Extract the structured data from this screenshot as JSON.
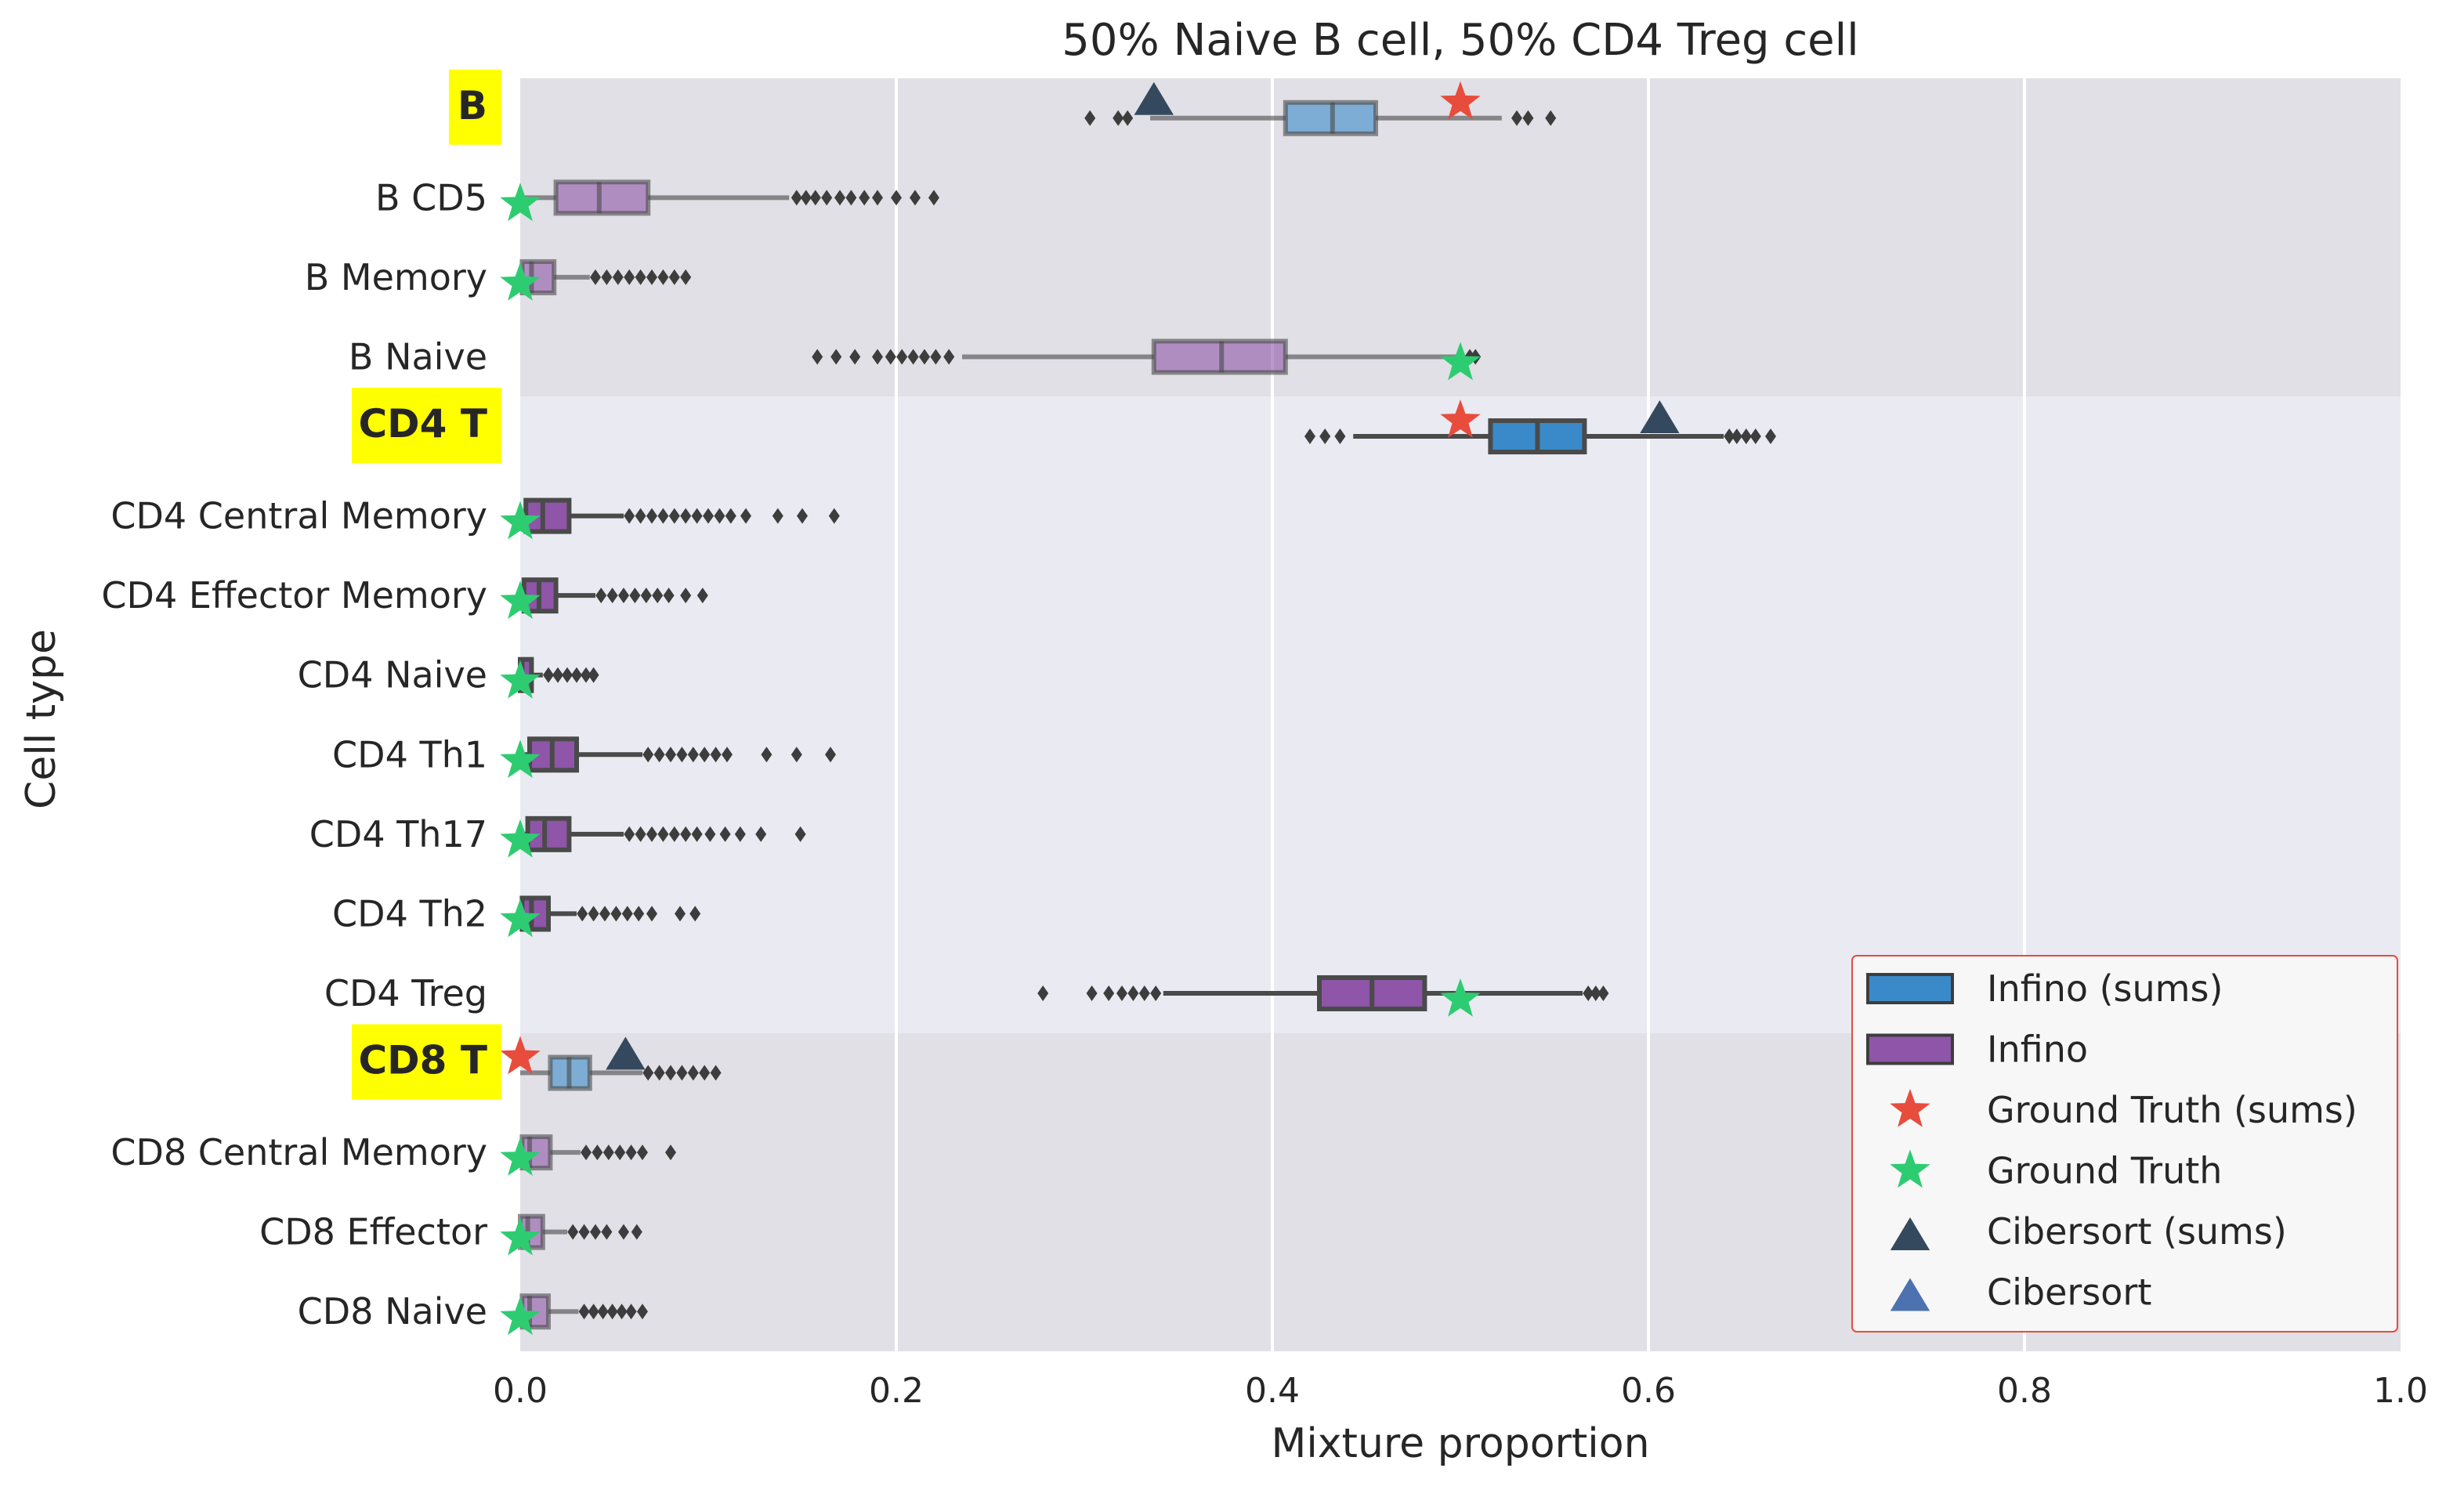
{
  "chart_data": {
    "type": "boxplot",
    "title": "50% Naive B cell, 50% CD4 Treg cell",
    "xlabel": "Mixture proportion",
    "ylabel": "Cell type",
    "xlim": [
      0.0,
      1.0
    ],
    "xticks": [
      "0.0",
      "0.2",
      "0.4",
      "0.6",
      "0.8",
      "1.0"
    ],
    "grid": true,
    "legend_position": "lower-right",
    "colors": {
      "infino_sums": "#3a8ac9",
      "infino": "#8e55a8",
      "ground_truth_sums": "#e74c3c",
      "ground_truth": "#2ecc71",
      "cibersort_sums": "#34495e",
      "cibersort": "#4c72b0",
      "group_label_bg": "#ffff00",
      "group_label_text": "#ff0000"
    },
    "legend": [
      {
        "label": "Infino (sums)",
        "marker": "box",
        "color_key": "infino_sums"
      },
      {
        "label": "Infino",
        "marker": "box",
        "color_key": "infino"
      },
      {
        "label": "Ground Truth (sums)",
        "marker": "star",
        "color_key": "ground_truth_sums"
      },
      {
        "label": "Ground Truth",
        "marker": "star",
        "color_key": "ground_truth"
      },
      {
        "label": "Cibersort (sums)",
        "marker": "triangle",
        "color_key": "cibersort_sums"
      },
      {
        "label": "Cibersort",
        "marker": "triangle",
        "color_key": "cibersort"
      }
    ],
    "groups": [
      {
        "name": "B",
        "shaded": true
      },
      {
        "name": "CD4 T",
        "shaded": false
      },
      {
        "name": "CD8 T",
        "shaded": true
      }
    ],
    "rows": [
      {
        "label": "B",
        "group": 0,
        "is_group": true,
        "series": "infino_sums",
        "box": {
          "whislo": 0.335,
          "q1": 0.407,
          "med": 0.432,
          "q3": 0.455,
          "whishi": 0.522
        },
        "fliers": [
          0.303,
          0.318,
          0.323,
          0.53,
          0.536,
          0.548
        ],
        "ground_truth": 0.5,
        "cibersort": 0.337
      },
      {
        "label": "B CD5",
        "group": 0,
        "is_group": false,
        "series": "infino",
        "box": {
          "whislo": 0.0,
          "q1": 0.019,
          "med": 0.042,
          "q3": 0.068,
          "whishi": 0.143
        },
        "fliers": [
          0.147,
          0.152,
          0.157,
          0.163,
          0.17,
          0.176,
          0.183,
          0.19,
          0.2,
          0.21,
          0.22
        ],
        "ground_truth": 0.0
      },
      {
        "label": "B Memory",
        "group": 0,
        "is_group": false,
        "series": "infino",
        "box": {
          "whislo": 0.0,
          "q1": 0.001,
          "med": 0.006,
          "q3": 0.018,
          "whishi": 0.037
        },
        "fliers": [
          0.04,
          0.046,
          0.052,
          0.058,
          0.064,
          0.07,
          0.076,
          0.082,
          0.088
        ],
        "ground_truth": 0.0
      },
      {
        "label": "B Naive",
        "group": 0,
        "is_group": false,
        "series": "infino",
        "box": {
          "whislo": 0.235,
          "q1": 0.337,
          "med": 0.373,
          "q3": 0.407,
          "whishi": 0.502
        },
        "fliers": [
          0.158,
          0.168,
          0.178,
          0.19,
          0.197,
          0.203,
          0.209,
          0.215,
          0.221,
          0.228,
          0.505,
          0.508
        ],
        "ground_truth": 0.5
      },
      {
        "label": "CD4 T",
        "group": 1,
        "is_group": true,
        "series": "infino_sums",
        "box": {
          "whislo": 0.443,
          "q1": 0.516,
          "med": 0.541,
          "q3": 0.566,
          "whishi": 0.64
        },
        "fliers": [
          0.42,
          0.428,
          0.436,
          0.643,
          0.647,
          0.652,
          0.657,
          0.665
        ],
        "ground_truth": 0.5,
        "cibersort": 0.606
      },
      {
        "label": "CD4 Central Memory",
        "group": 1,
        "is_group": false,
        "series": "infino",
        "box": {
          "whislo": 0.0,
          "q1": 0.003,
          "med": 0.012,
          "q3": 0.026,
          "whishi": 0.055
        },
        "fliers": [
          0.058,
          0.064,
          0.07,
          0.076,
          0.082,
          0.088,
          0.094,
          0.1,
          0.106,
          0.112,
          0.12,
          0.137,
          0.15,
          0.167
        ],
        "ground_truth": 0.0
      },
      {
        "label": "CD4 Effector Memory",
        "group": 1,
        "is_group": false,
        "series": "infino",
        "box": {
          "whislo": 0.0,
          "q1": 0.002,
          "med": 0.01,
          "q3": 0.019,
          "whishi": 0.04
        },
        "fliers": [
          0.043,
          0.049,
          0.055,
          0.061,
          0.067,
          0.073,
          0.079,
          0.088,
          0.097
        ],
        "ground_truth": 0.0
      },
      {
        "label": "CD4 Naive",
        "group": 1,
        "is_group": false,
        "series": "infino",
        "box": {
          "whislo": 0.0,
          "q1": 0.0,
          "med": 0.001,
          "q3": 0.006,
          "whishi": 0.012
        },
        "fliers": [
          0.015,
          0.02,
          0.025,
          0.03,
          0.035,
          0.039
        ],
        "ground_truth": 0.0
      },
      {
        "label": "CD4 Th1",
        "group": 1,
        "is_group": false,
        "series": "infino",
        "box": {
          "whislo": 0.0,
          "q1": 0.005,
          "med": 0.017,
          "q3": 0.03,
          "whishi": 0.065
        },
        "fliers": [
          0.068,
          0.074,
          0.08,
          0.086,
          0.092,
          0.098,
          0.104,
          0.11,
          0.131,
          0.147,
          0.165
        ],
        "ground_truth": 0.0
      },
      {
        "label": "CD4 Th17",
        "group": 1,
        "is_group": false,
        "series": "infino",
        "box": {
          "whislo": 0.0,
          "q1": 0.004,
          "med": 0.013,
          "q3": 0.026,
          "whishi": 0.055
        },
        "fliers": [
          0.058,
          0.064,
          0.07,
          0.076,
          0.082,
          0.088,
          0.094,
          0.101,
          0.109,
          0.117,
          0.128,
          0.149
        ],
        "ground_truth": 0.0
      },
      {
        "label": "CD4 Th2",
        "group": 1,
        "is_group": false,
        "series": "infino",
        "box": {
          "whislo": 0.0,
          "q1": 0.001,
          "med": 0.006,
          "q3": 0.015,
          "whishi": 0.03
        },
        "fliers": [
          0.033,
          0.039,
          0.045,
          0.051,
          0.057,
          0.063,
          0.07,
          0.085,
          0.093
        ],
        "ground_truth": 0.0
      },
      {
        "label": "CD4 Treg",
        "group": 1,
        "is_group": false,
        "series": "infino",
        "box": {
          "whislo": 0.342,
          "q1": 0.425,
          "med": 0.453,
          "q3": 0.481,
          "whishi": 0.565
        },
        "fliers": [
          0.278,
          0.304,
          0.313,
          0.32,
          0.326,
          0.332,
          0.338,
          0.568,
          0.572,
          0.576
        ],
        "ground_truth": 0.5
      },
      {
        "label": "CD8 T",
        "group": 2,
        "is_group": true,
        "series": "infino_sums",
        "box": {
          "whislo": 0.0,
          "q1": 0.016,
          "med": 0.026,
          "q3": 0.037,
          "whishi": 0.065
        },
        "fliers": [
          0.068,
          0.074,
          0.08,
          0.086,
          0.092,
          0.098,
          0.104
        ],
        "ground_truth": 0.0,
        "cibersort": 0.056
      },
      {
        "label": "CD8 Central Memory",
        "group": 2,
        "is_group": false,
        "series": "infino",
        "box": {
          "whislo": 0.0,
          "q1": 0.001,
          "med": 0.005,
          "q3": 0.016,
          "whishi": 0.032
        },
        "fliers": [
          0.035,
          0.041,
          0.047,
          0.053,
          0.059,
          0.065,
          0.08
        ],
        "ground_truth": 0.0
      },
      {
        "label": "CD8 Effector",
        "group": 2,
        "is_group": false,
        "series": "infino",
        "box": {
          "whislo": 0.0,
          "q1": 0.0,
          "med": 0.004,
          "q3": 0.012,
          "whishi": 0.025
        },
        "fliers": [
          0.028,
          0.034,
          0.04,
          0.046,
          0.055,
          0.062
        ],
        "ground_truth": 0.0
      },
      {
        "label": "CD8 Naive",
        "group": 2,
        "is_group": false,
        "series": "infino",
        "box": {
          "whislo": 0.0,
          "q1": 0.001,
          "med": 0.005,
          "q3": 0.015,
          "whishi": 0.031
        },
        "fliers": [
          0.034,
          0.039,
          0.044,
          0.049,
          0.054,
          0.059,
          0.065
        ],
        "ground_truth": 0.0
      }
    ]
  }
}
